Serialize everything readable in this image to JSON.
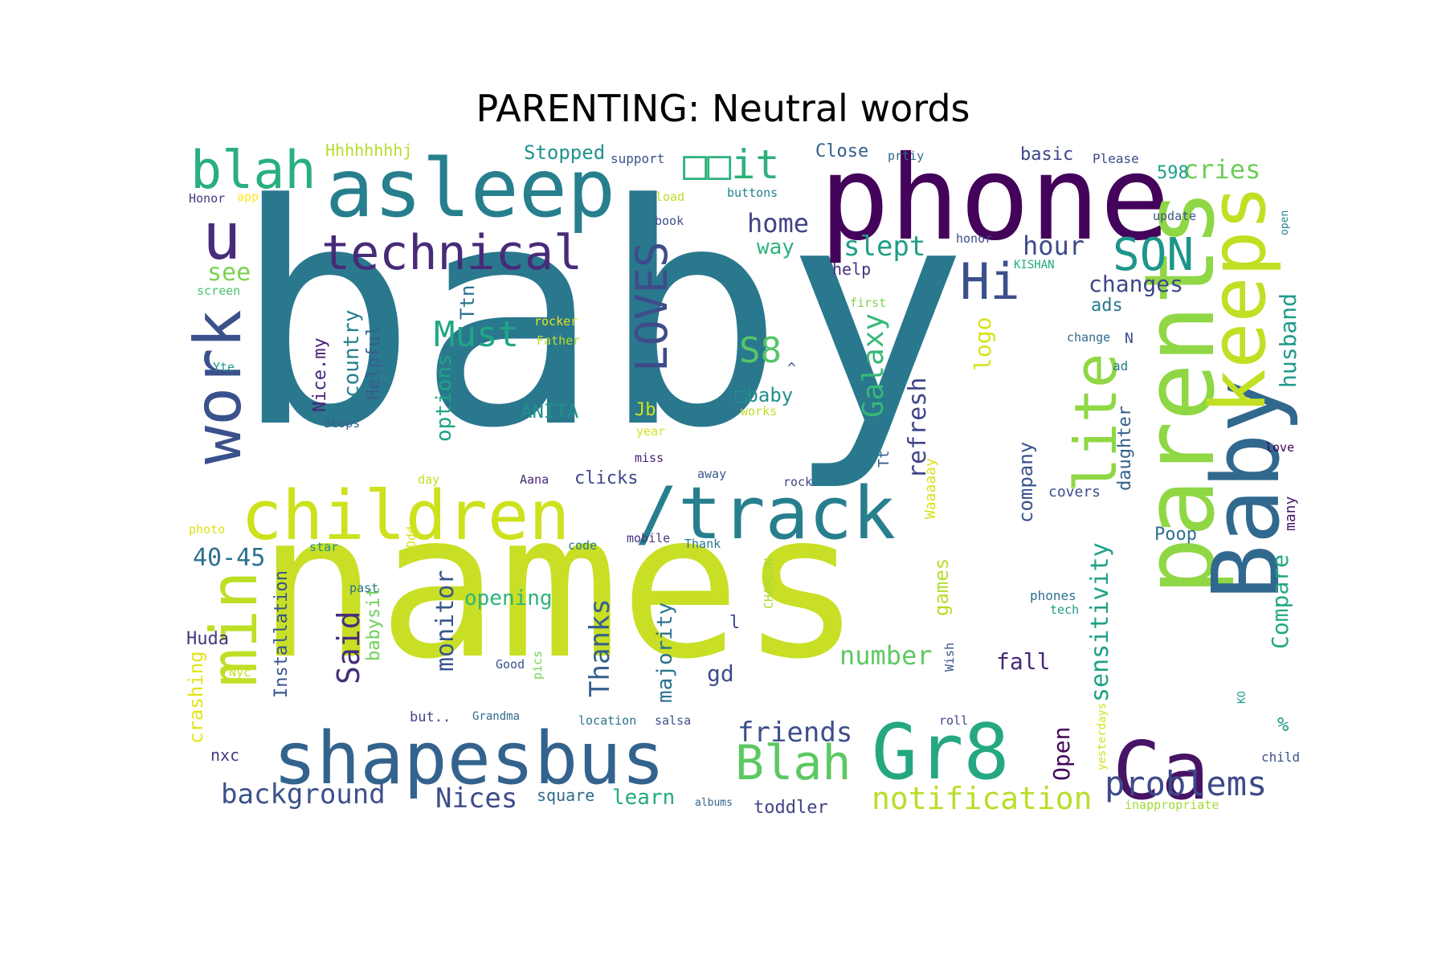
{
  "title": "PARENTING: Neutral words",
  "words": [
    {
      "text": "baby",
      "color": "#2a788e"
    },
    {
      "text": "names",
      "color": "#c8df25"
    },
    {
      "text": "phone",
      "color": "#44035a"
    },
    {
      "text": "asleep",
      "color": "#277f8e"
    },
    {
      "text": "parents",
      "color": "#8fd744"
    },
    {
      "text": "Baby",
      "color": "#31688e"
    },
    {
      "text": "keeps",
      "color": "#c2df23"
    },
    {
      "text": "children",
      "color": "#cde11d"
    },
    {
      "text": "/track",
      "color": "#277f8e"
    },
    {
      "text": "shapesbus",
      "color": "#33638d"
    },
    {
      "text": "Gr8",
      "color": "#25a882"
    },
    {
      "text": "Ca",
      "color": "#471365"
    },
    {
      "text": "technical",
      "color": "#482b78"
    },
    {
      "text": "work",
      "color": "#3b518b"
    },
    {
      "text": "min",
      "color": "#bddf26"
    },
    {
      "text": "blah",
      "color": "#29af7f"
    },
    {
      "text": "u",
      "color": "#472c7a"
    },
    {
      "text": "lite",
      "color": "#8fd744"
    },
    {
      "text": "SON",
      "color": "#1f958b"
    },
    {
      "text": "Hi",
      "color": "#3b518b"
    },
    {
      "text": "LOVES",
      "color": "#3e4c8a"
    },
    {
      "text": "Blah",
      "color": "#5cc863"
    },
    {
      "text": "problems",
      "color": "#3e4a89"
    },
    {
      "text": "notification",
      "color": "#b8de29"
    },
    {
      "text": "Must",
      "color": "#21a685"
    },
    {
      "text": "Said",
      "color": "#472d7b"
    },
    {
      "text": "Galaxy",
      "color": "#37b878"
    },
    {
      "text": "S8",
      "color": "#55c667"
    },
    {
      "text": "slept",
      "color": "#1f9e89"
    },
    {
      "text": "home",
      "color": "#414487"
    },
    {
      "text": "hour",
      "color": "#3e4a89"
    },
    {
      "text": "cries",
      "color": "#6ece58"
    },
    {
      "text": "changes",
      "color": "#3f4788"
    },
    {
      "text": "husband",
      "color": "#1f9a8a"
    },
    {
      "text": "background",
      "color": "#3b528b"
    },
    {
      "text": "Nices",
      "color": "#3e4c8a"
    },
    {
      "text": "friends",
      "color": "#3c4f8a"
    },
    {
      "text": "Thanks",
      "color": "#355f8d"
    },
    {
      "text": "monitor",
      "color": "#39558c"
    },
    {
      "text": "number",
      "color": "#5ec962"
    },
    {
      "text": "sensitivity",
      "color": "#1fa187"
    },
    {
      "text": "Compare",
      "color": "#22a884"
    },
    {
      "text": "refresh",
      "color": "#404688"
    },
    {
      "text": "see",
      "color": "#7ad151"
    },
    {
      "text": "40-45",
      "color": "#2d708e"
    },
    {
      "text": "options",
      "color": "#20a386"
    },
    {
      "text": "country",
      "color": "#26818e"
    },
    {
      "text": "Helpful",
      "color": "#355e8d"
    },
    {
      "text": "Nice.my",
      "color": "#482576"
    },
    {
      "text": "babysit",
      "color": "#6ece58"
    },
    {
      "text": "Installation",
      "color": "#3a548c"
    },
    {
      "text": "crashing",
      "color": "#e2e418"
    },
    {
      "text": "Huda",
      "color": "#453781"
    },
    {
      "text": "nxc",
      "color": "#443a83"
    },
    {
      "text": "logo",
      "color": "#d8e219"
    },
    {
      "text": "company",
      "color": "#3b528b"
    },
    {
      "text": "daughter",
      "color": "#35608d"
    },
    {
      "text": "Open",
      "color": "#450559"
    },
    {
      "text": "fall",
      "color": "#482878"
    },
    {
      "text": "games",
      "color": "#b5de2b"
    },
    {
      "text": "majority",
      "color": "#2c738e"
    },
    {
      "text": "gd",
      "color": "#3d4e8a"
    },
    {
      "text": "opening",
      "color": "#2db27d"
    },
    {
      "text": "learn",
      "color": "#24aa83"
    },
    {
      "text": "way",
      "color": "#2eb37c"
    },
    {
      "text": "ads",
      "color": "#2a788e"
    },
    {
      "text": "ANITA",
      "color": "#21908d"
    },
    {
      "text": "Jb",
      "color": "#d2e21b"
    },
    {
      "text": "clicks",
      "color": "#3f4889"
    },
    {
      "text": "Ttn",
      "color": "#2c728e"
    },
    {
      "text": "Stopped",
      "color": "#20928c"
    },
    {
      "text": "Hhhhhhhhj",
      "color": "#b5de2b"
    },
    {
      "text": "Close",
      "color": "#355f8d"
    },
    {
      "text": "basic",
      "color": "#3f4788"
    },
    {
      "text": "598",
      "color": "#1fa088"
    },
    {
      "text": "help",
      "color": "#46307e"
    },
    {
      "text": "square",
      "color": "#2f6c8e"
    },
    {
      "text": "toddler",
      "color": "#414487"
    },
    {
      "text": "Poop",
      "color": "#2d708e"
    },
    {
      "text": "many",
      "color": "#481769"
    },
    {
      "text": "%",
      "color": "#1f9e89"
    },
    {
      "text": "covers",
      "color": "#3e4c8a"
    },
    {
      "text": "Waaaaay",
      "color": "#d8e219"
    },
    {
      "text": "Tt",
      "color": "#38588c"
    },
    {
      "text": "tech",
      "color": "#1f998a"
    },
    {
      "text": "phones",
      "color": "#2c718e"
    },
    {
      "text": "support",
      "color": "#3b528b"
    },
    {
      "text": "prtiy",
      "color": "#31688e"
    },
    {
      "text": "Please",
      "color": "#3e4a89"
    },
    {
      "text": "Honor",
      "color": "#453882"
    },
    {
      "text": "app",
      "color": "#fde725"
    },
    {
      "text": "load",
      "color": "#bade28"
    },
    {
      "text": "buttons",
      "color": "#26828e"
    },
    {
      "text": "book",
      "color": "#3d4e8a"
    },
    {
      "text": "update",
      "color": "#39558c"
    },
    {
      "text": "honor",
      "color": "#3e4a89"
    },
    {
      "text": "KISHAN",
      "color": "#22a884"
    },
    {
      "text": "open",
      "color": "#25838e"
    },
    {
      "text": "screen",
      "color": "#4ac16d"
    },
    {
      "text": "first",
      "color": "#7fd34e"
    },
    {
      "text": "rocker",
      "color": "#e5e419"
    },
    {
      "text": "Father",
      "color": "#b8de29"
    },
    {
      "text": "Yte",
      "color": "#1f968b"
    },
    {
      "text": "Stops",
      "color": "#33638d"
    },
    {
      "text": "change",
      "color": "#31688e"
    },
    {
      "text": "N",
      "color": "#3e4a89"
    },
    {
      "text": "ad",
      "color": "#29798e"
    },
    {
      "text": "works",
      "color": "#c0df25"
    },
    {
      "text": "year",
      "color": "#d0e11c"
    },
    {
      "text": "miss",
      "color": "#482173"
    },
    {
      "text": "day",
      "color": "#c5e021"
    },
    {
      "text": "Aana",
      "color": "#482878"
    },
    {
      "text": "away",
      "color": "#38588c"
    },
    {
      "text": "rock",
      "color": "#414487"
    },
    {
      "text": "love",
      "color": "#440154"
    },
    {
      "text": "photo",
      "color": "#dde318"
    },
    {
      "text": "star",
      "color": "#21918c"
    },
    {
      "text": "Ddd",
      "color": "#d8e219"
    },
    {
      "text": "code",
      "color": "#2a768e"
    },
    {
      "text": "mobile",
      "color": "#46327e"
    },
    {
      "text": "Thank",
      "color": "#2a788e"
    },
    {
      "text": "CHAMOUN",
      "color": "#a8db34"
    },
    {
      "text": "past",
      "color": "#2c728e"
    },
    {
      "text": "Nyc",
      "color": "#c8e020"
    },
    {
      "text": "Good",
      "color": "#3a548c"
    },
    {
      "text": "pics",
      "color": "#7ad151"
    },
    {
      "text": "but..",
      "color": "#404588"
    },
    {
      "text": "Grandma",
      "color": "#31688e"
    },
    {
      "text": "location",
      "color": "#2c728e"
    },
    {
      "text": "salsa",
      "color": "#3e4c8a"
    },
    {
      "text": "albums",
      "color": "#33638d"
    },
    {
      "text": "roll",
      "color": "#404588"
    },
    {
      "text": "Wish",
      "color": "#3b528b"
    },
    {
      "text": "yesterdays",
      "color": "#d2e21b"
    },
    {
      "text": "KO",
      "color": "#1f9e89"
    },
    {
      "text": "child",
      "color": "#3b518b"
    },
    {
      "text": "inappropriate",
      "color": "#a0da39"
    },
    {
      "text": "l",
      "color": "#3e4c8a"
    },
    {
      "text": "^",
      "color": "#3b528b"
    },
    {
      "text": "□baby",
      "color": "#21908d"
    },
    {
      "text": "□□it",
      "color": "#2db27d"
    }
  ]
}
